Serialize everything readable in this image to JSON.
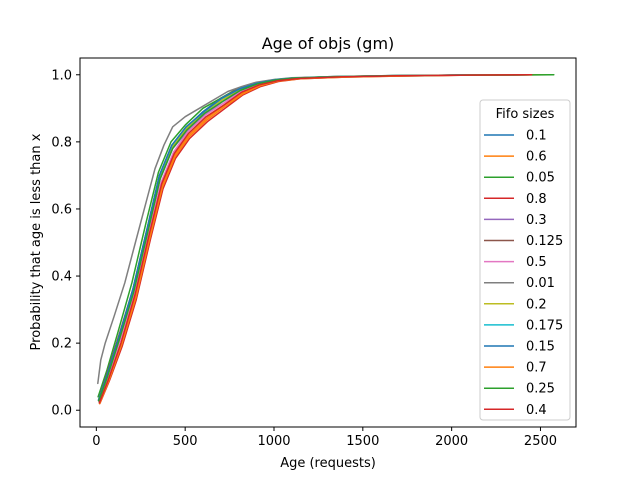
{
  "chart_data": {
    "type": "line",
    "title": "Age of objs (gm)",
    "xlabel": "Age (requests)",
    "ylabel": "Probability that age is less than x",
    "xlim": [
      -92,
      2700
    ],
    "ylim": [
      -0.05,
      1.05
    ],
    "xticks": [
      0,
      500,
      1000,
      1500,
      2000,
      2500
    ],
    "yticks": [
      0.0,
      0.2,
      0.4,
      0.6,
      0.8,
      1.0
    ],
    "xtick_labels": [
      "0",
      "500",
      "1000",
      "1500",
      "2000",
      "2500"
    ],
    "ytick_labels": [
      "0.0",
      "0.2",
      "0.4",
      "0.6",
      "0.8",
      "1.0"
    ],
    "grid": false,
    "legend": {
      "title": "Fifo sizes",
      "placement": "right"
    },
    "series": [
      {
        "name": "0.1",
        "color": "#1f77b4",
        "points": [
          [
            12,
            0.03
          ],
          [
            60,
            0.1
          ],
          [
            120,
            0.2
          ],
          [
            200,
            0.34
          ],
          [
            280,
            0.52
          ],
          [
            350,
            0.68
          ],
          [
            420,
            0.78
          ],
          [
            500,
            0.84
          ],
          [
            600,
            0.89
          ],
          [
            700,
            0.93
          ],
          [
            800,
            0.96
          ],
          [
            900,
            0.975
          ],
          [
            1000,
            0.985
          ],
          [
            1100,
            0.99
          ],
          [
            1300,
            0.994
          ],
          [
            1600,
            0.997
          ],
          [
            2000,
            0.999
          ],
          [
            2400,
            1.0
          ]
        ]
      },
      {
        "name": "0.6",
        "color": "#ff7f0e",
        "points": [
          [
            18,
            0.02
          ],
          [
            70,
            0.09
          ],
          [
            140,
            0.2
          ],
          [
            220,
            0.34
          ],
          [
            300,
            0.52
          ],
          [
            370,
            0.67
          ],
          [
            440,
            0.76
          ],
          [
            520,
            0.82
          ],
          [
            620,
            0.87
          ],
          [
            720,
            0.91
          ],
          [
            820,
            0.945
          ],
          [
            920,
            0.97
          ],
          [
            1020,
            0.982
          ],
          [
            1150,
            0.989
          ],
          [
            1400,
            0.994
          ],
          [
            1700,
            0.997
          ],
          [
            2100,
            0.999
          ],
          [
            2450,
            1.0
          ]
        ]
      },
      {
        "name": "0.05",
        "color": "#2ca02c",
        "points": [
          [
            10,
            0.04
          ],
          [
            60,
            0.12
          ],
          [
            120,
            0.23
          ],
          [
            200,
            0.38
          ],
          [
            280,
            0.56
          ],
          [
            350,
            0.71
          ],
          [
            420,
            0.8
          ],
          [
            500,
            0.85
          ],
          [
            600,
            0.9
          ],
          [
            700,
            0.93
          ],
          [
            800,
            0.96
          ],
          [
            900,
            0.976
          ],
          [
            1000,
            0.985
          ],
          [
            1100,
            0.99
          ],
          [
            1300,
            0.994
          ],
          [
            1600,
            0.997
          ],
          [
            2000,
            0.999
          ],
          [
            2560,
            1.0
          ]
        ]
      },
      {
        "name": "0.8",
        "color": "#d62728",
        "points": [
          [
            20,
            0.02
          ],
          [
            75,
            0.09
          ],
          [
            145,
            0.19
          ],
          [
            225,
            0.33
          ],
          [
            305,
            0.51
          ],
          [
            375,
            0.66
          ],
          [
            445,
            0.75
          ],
          [
            525,
            0.81
          ],
          [
            625,
            0.86
          ],
          [
            725,
            0.9
          ],
          [
            825,
            0.94
          ],
          [
            925,
            0.965
          ],
          [
            1025,
            0.98
          ],
          [
            1150,
            0.988
          ],
          [
            1400,
            0.993
          ],
          [
            1700,
            0.996
          ],
          [
            2100,
            0.999
          ],
          [
            2480,
            1.0
          ]
        ]
      },
      {
        "name": "0.3",
        "color": "#9467bd",
        "points": [
          [
            15,
            0.025
          ],
          [
            65,
            0.1
          ],
          [
            130,
            0.21
          ],
          [
            210,
            0.35
          ],
          [
            290,
            0.53
          ],
          [
            360,
            0.69
          ],
          [
            430,
            0.78
          ],
          [
            510,
            0.83
          ],
          [
            610,
            0.88
          ],
          [
            710,
            0.92
          ],
          [
            810,
            0.95
          ],
          [
            910,
            0.972
          ],
          [
            1010,
            0.984
          ],
          [
            1120,
            0.99
          ],
          [
            1350,
            0.994
          ],
          [
            1650,
            0.997
          ],
          [
            2050,
            0.999
          ],
          [
            2420,
            1.0
          ]
        ]
      },
      {
        "name": "0.125",
        "color": "#8c564b",
        "points": [
          [
            12,
            0.03
          ],
          [
            60,
            0.11
          ],
          [
            125,
            0.22
          ],
          [
            205,
            0.36
          ],
          [
            285,
            0.54
          ],
          [
            355,
            0.7
          ],
          [
            425,
            0.79
          ],
          [
            505,
            0.84
          ],
          [
            605,
            0.89
          ],
          [
            705,
            0.93
          ],
          [
            805,
            0.96
          ],
          [
            905,
            0.975
          ],
          [
            1005,
            0.985
          ],
          [
            1105,
            0.99
          ],
          [
            1320,
            0.994
          ],
          [
            1620,
            0.997
          ],
          [
            2020,
            0.999
          ],
          [
            2430,
            1.0
          ]
        ]
      },
      {
        "name": "0.5",
        "color": "#e377c2",
        "points": [
          [
            16,
            0.025
          ],
          [
            68,
            0.1
          ],
          [
            135,
            0.21
          ],
          [
            215,
            0.35
          ],
          [
            295,
            0.53
          ],
          [
            365,
            0.68
          ],
          [
            435,
            0.77
          ],
          [
            515,
            0.83
          ],
          [
            615,
            0.88
          ],
          [
            715,
            0.915
          ],
          [
            815,
            0.95
          ],
          [
            915,
            0.97
          ],
          [
            1015,
            0.983
          ],
          [
            1130,
            0.989
          ],
          [
            1380,
            0.994
          ],
          [
            1680,
            0.997
          ],
          [
            2080,
            0.999
          ],
          [
            2440,
            1.0
          ]
        ]
      },
      {
        "name": "0.01",
        "color": "#7f7f7f",
        "points": [
          [
            8,
            0.08
          ],
          [
            25,
            0.15
          ],
          [
            50,
            0.2
          ],
          [
            100,
            0.28
          ],
          [
            160,
            0.38
          ],
          [
            220,
            0.5
          ],
          [
            280,
            0.62
          ],
          [
            330,
            0.72
          ],
          [
            380,
            0.79
          ],
          [
            430,
            0.845
          ],
          [
            500,
            0.875
          ],
          [
            580,
            0.9
          ],
          [
            660,
            0.925
          ],
          [
            740,
            0.95
          ],
          [
            820,
            0.965
          ],
          [
            900,
            0.978
          ],
          [
            1000,
            0.986
          ],
          [
            1100,
            0.991
          ],
          [
            1300,
            0.994
          ],
          [
            1600,
            0.997
          ],
          [
            2000,
            0.999
          ],
          [
            2450,
            1.0
          ]
        ]
      },
      {
        "name": "0.2",
        "color": "#bcbd22",
        "points": [
          [
            14,
            0.028
          ],
          [
            62,
            0.1
          ],
          [
            128,
            0.21
          ],
          [
            208,
            0.35
          ],
          [
            288,
            0.53
          ],
          [
            358,
            0.69
          ],
          [
            428,
            0.785
          ],
          [
            508,
            0.84
          ],
          [
            608,
            0.89
          ],
          [
            708,
            0.925
          ],
          [
            808,
            0.955
          ],
          [
            908,
            0.974
          ],
          [
            1008,
            0.985
          ],
          [
            1110,
            0.99
          ],
          [
            1330,
            0.994
          ],
          [
            1630,
            0.997
          ],
          [
            2030,
            0.999
          ],
          [
            2540,
            1.0
          ]
        ]
      },
      {
        "name": "0.175",
        "color": "#17becf",
        "points": [
          [
            13,
            0.03
          ],
          [
            61,
            0.1
          ],
          [
            126,
            0.21
          ],
          [
            206,
            0.355
          ],
          [
            286,
            0.535
          ],
          [
            356,
            0.7
          ],
          [
            426,
            0.79
          ],
          [
            506,
            0.845
          ],
          [
            606,
            0.89
          ],
          [
            706,
            0.93
          ],
          [
            806,
            0.958
          ],
          [
            906,
            0.975
          ],
          [
            1006,
            0.985
          ],
          [
            1108,
            0.99
          ],
          [
            1325,
            0.994
          ],
          [
            1625,
            0.997
          ],
          [
            2025,
            0.999
          ],
          [
            2440,
            1.0
          ]
        ]
      },
      {
        "name": "0.15",
        "color": "#1f77b4",
        "points": [
          [
            12,
            0.03
          ],
          [
            60,
            0.105
          ],
          [
            125,
            0.215
          ],
          [
            205,
            0.36
          ],
          [
            285,
            0.54
          ],
          [
            355,
            0.7
          ],
          [
            425,
            0.79
          ],
          [
            505,
            0.845
          ],
          [
            605,
            0.89
          ],
          [
            705,
            0.93
          ],
          [
            805,
            0.958
          ],
          [
            905,
            0.975
          ],
          [
            1005,
            0.985
          ],
          [
            1105,
            0.99
          ],
          [
            1320,
            0.994
          ],
          [
            1620,
            0.997
          ],
          [
            2020,
            0.999
          ],
          [
            2440,
            1.0
          ]
        ]
      },
      {
        "name": "0.7",
        "color": "#ff7f0e",
        "points": [
          [
            19,
            0.02
          ],
          [
            72,
            0.09
          ],
          [
            142,
            0.195
          ],
          [
            222,
            0.335
          ],
          [
            302,
            0.515
          ],
          [
            372,
            0.665
          ],
          [
            442,
            0.755
          ],
          [
            522,
            0.815
          ],
          [
            622,
            0.865
          ],
          [
            722,
            0.905
          ],
          [
            822,
            0.942
          ],
          [
            922,
            0.967
          ],
          [
            1022,
            0.981
          ],
          [
            1150,
            0.988
          ],
          [
            1400,
            0.993
          ],
          [
            1700,
            0.996
          ],
          [
            2100,
            0.999
          ],
          [
            2460,
            1.0
          ]
        ]
      },
      {
        "name": "0.25",
        "color": "#2ca02c",
        "points": [
          [
            14,
            0.028
          ],
          [
            63,
            0.1
          ],
          [
            129,
            0.21
          ],
          [
            209,
            0.35
          ],
          [
            289,
            0.53
          ],
          [
            359,
            0.69
          ],
          [
            429,
            0.78
          ],
          [
            509,
            0.835
          ],
          [
            609,
            0.885
          ],
          [
            709,
            0.92
          ],
          [
            809,
            0.953
          ],
          [
            909,
            0.973
          ],
          [
            1009,
            0.984
          ],
          [
            1115,
            0.99
          ],
          [
            1340,
            0.994
          ],
          [
            1640,
            0.997
          ],
          [
            2040,
            0.999
          ],
          [
            2575,
            1.0
          ]
        ]
      },
      {
        "name": "0.4",
        "color": "#d62728",
        "points": [
          [
            17,
            0.022
          ],
          [
            70,
            0.095
          ],
          [
            138,
            0.2
          ],
          [
            218,
            0.345
          ],
          [
            298,
            0.525
          ],
          [
            368,
            0.675
          ],
          [
            438,
            0.765
          ],
          [
            518,
            0.825
          ],
          [
            618,
            0.875
          ],
          [
            718,
            0.91
          ],
          [
            818,
            0.948
          ],
          [
            918,
            0.97
          ],
          [
            1018,
            0.982
          ],
          [
            1140,
            0.989
          ],
          [
            1390,
            0.994
          ],
          [
            1690,
            0.997
          ],
          [
            2090,
            0.999
          ],
          [
            2450,
            1.0
          ]
        ]
      }
    ]
  }
}
